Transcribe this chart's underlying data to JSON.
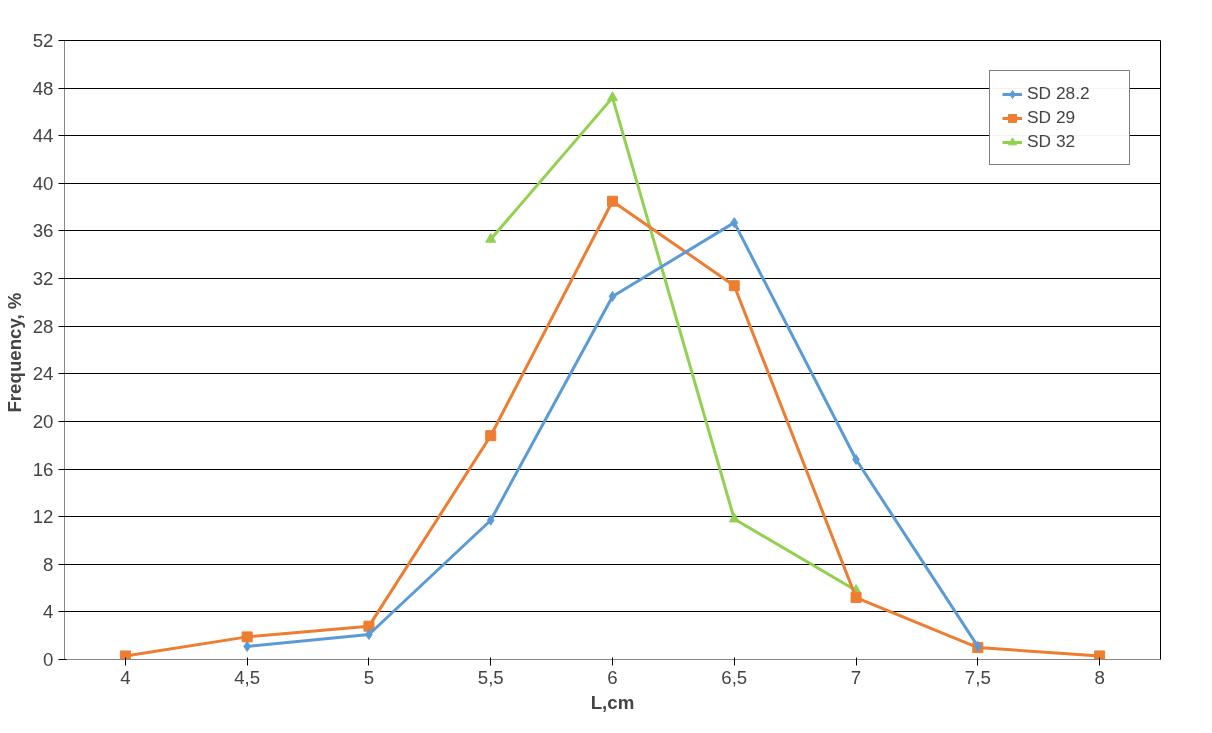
{
  "chart_data": {
    "type": "line",
    "xlabel": "L,cm",
    "ylabel": "Frequency,  %",
    "categories": [
      "4",
      "4,5",
      "5",
      "5,5",
      "6",
      "6,5",
      "7",
      "7,5",
      "8"
    ],
    "series": [
      {
        "name": "SD 28.2",
        "color": "#5b9bd5",
        "marker": "diamond",
        "values": [
          null,
          1.1,
          2.1,
          11.7,
          30.5,
          36.7,
          16.8,
          1.1,
          null
        ]
      },
      {
        "name": "SD 29",
        "color": "#ed7d31",
        "marker": "square",
        "values": [
          0.3,
          1.9,
          2.8,
          18.8,
          38.5,
          31.4,
          5.2,
          1.0,
          0.3
        ]
      },
      {
        "name": "SD 32",
        "color": "#92d050",
        "marker": "triangle",
        "values": [
          null,
          null,
          null,
          35.3,
          47.2,
          11.8,
          5.8,
          null,
          null
        ]
      }
    ],
    "ylim": [
      0,
      52
    ],
    "yticks": [
      0,
      4,
      8,
      12,
      16,
      20,
      24,
      28,
      32,
      36,
      40,
      44,
      48,
      52
    ],
    "grid": "y",
    "legend": "top right",
    "line_style": "solid"
  }
}
